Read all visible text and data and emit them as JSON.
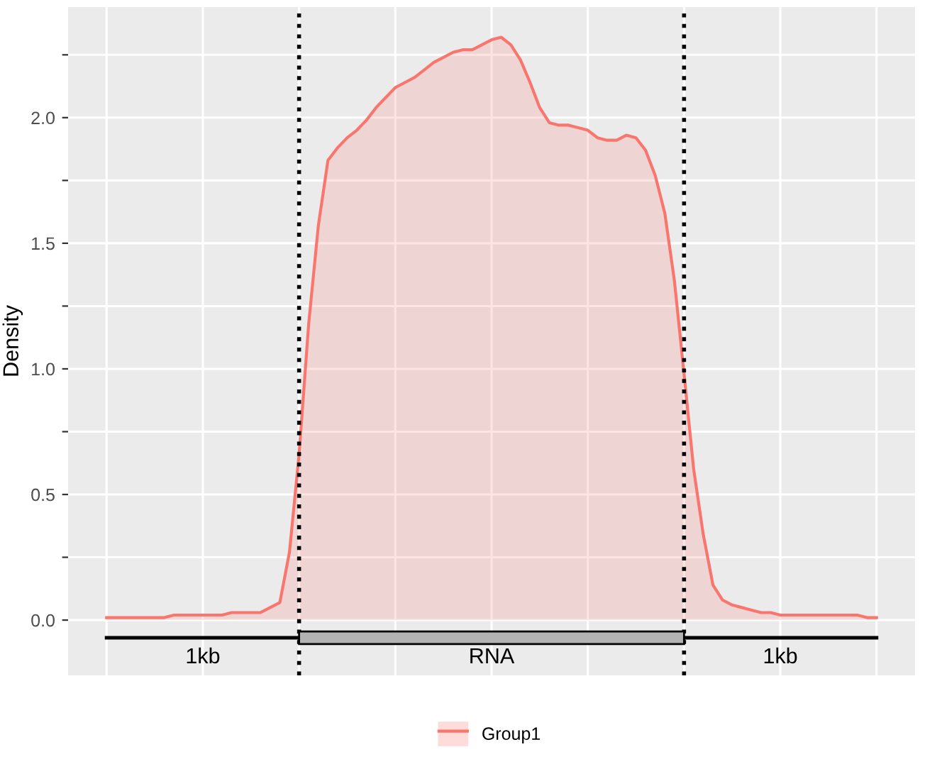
{
  "chart_data": {
    "type": "area",
    "ylabel": "Density",
    "categories": [
      null,
      null,
      null,
      null,
      null,
      null,
      null,
      null,
      null,
      null,
      null,
      null,
      null,
      null,
      null,
      null,
      null,
      null,
      null,
      null,
      null,
      null,
      null,
      null,
      null,
      null,
      null,
      null,
      null,
      null,
      null,
      null,
      null,
      null,
      null,
      null,
      null,
      null,
      null,
      null,
      null,
      null,
      null,
      null,
      null,
      null,
      null,
      null,
      null,
      null,
      null,
      null,
      null,
      null,
      null,
      null,
      null,
      null,
      null,
      null,
      null,
      null,
      null,
      null,
      null,
      null,
      null,
      null,
      null,
      null,
      null,
      null,
      null,
      null,
      null,
      null,
      null,
      null,
      null,
      null,
      null
    ],
    "series": [
      {
        "name": "Group1",
        "color": "#f8766d",
        "values": [
          0.01,
          0.01,
          0.01,
          0.01,
          0.01,
          0.01,
          0.01,
          0.02,
          0.02,
          0.02,
          0.02,
          0.02,
          0.02,
          0.03,
          0.03,
          0.03,
          0.03,
          0.05,
          0.07,
          0.27,
          0.66,
          1.18,
          1.57,
          1.83,
          1.88,
          1.92,
          1.95,
          1.99,
          2.04,
          2.08,
          2.12,
          2.14,
          2.16,
          2.19,
          2.22,
          2.24,
          2.26,
          2.27,
          2.27,
          2.29,
          2.31,
          2.32,
          2.29,
          2.23,
          2.14,
          2.04,
          1.98,
          1.97,
          1.97,
          1.96,
          1.95,
          1.92,
          1.91,
          1.91,
          1.93,
          1.92,
          1.87,
          1.77,
          1.62,
          1.35,
          0.98,
          0.6,
          0.34,
          0.14,
          0.08,
          0.06,
          0.05,
          0.04,
          0.03,
          0.03,
          0.02,
          0.02,
          0.02,
          0.02,
          0.02,
          0.02,
          0.02,
          0.02,
          0.02,
          0.01,
          0.01
        ]
      }
    ],
    "ylim": [
      -0.22,
      2.44
    ],
    "yticks": [
      {
        "value": 0,
        "label": "0.0"
      },
      {
        "value": 0.25,
        "label": null
      },
      {
        "value": 0.5,
        "label": "0.5"
      },
      {
        "value": 0.75,
        "label": null
      },
      {
        "value": 1,
        "label": "1.0"
      },
      {
        "value": 1.25,
        "label": null
      },
      {
        "value": 1.5,
        "label": "1.5"
      },
      {
        "value": 1.75,
        "label": null
      },
      {
        "value": 2,
        "label": "2.0"
      },
      {
        "value": 2.25,
        "label": null
      }
    ],
    "annotations": [
      "1kb",
      "RNA",
      "1kb"
    ],
    "grid": true,
    "legend": "bottom"
  }
}
